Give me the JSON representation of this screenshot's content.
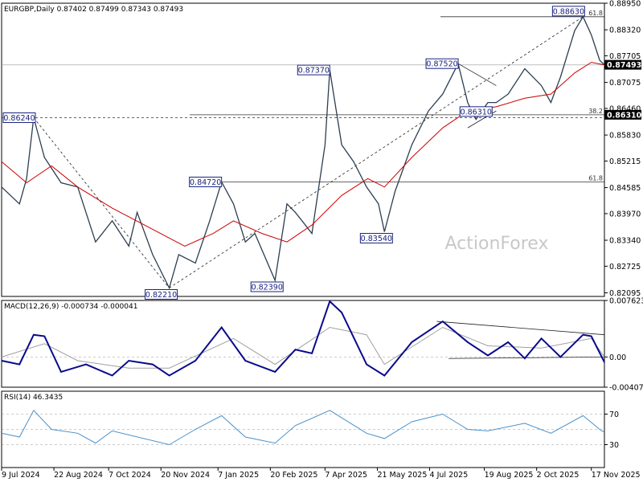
{
  "chart_data": [
    {
      "type": "line",
      "panel": "price",
      "title": "EURGBP,Daily",
      "ohlc": [
        "0.87402",
        "0.87499",
        "0.87343",
        "0.87493"
      ],
      "series": [
        {
          "name": "price",
          "color": "#2c3e50",
          "points": [
            [
              "2024-07-09",
              0.846
            ],
            [
              "2024-07-24",
              0.842
            ],
            [
              "2024-07-30",
              0.848
            ],
            [
              "2024-08-05",
              0.8624
            ],
            [
              "2024-08-14",
              0.853
            ],
            [
              "2024-08-28",
              0.847
            ],
            [
              "2024-09-11",
              0.846
            ],
            [
              "2024-09-26",
              0.833
            ],
            [
              "2024-10-10",
              0.838
            ],
            [
              "2024-10-24",
              0.832
            ],
            [
              "2024-10-31",
              0.84
            ],
            [
              "2024-11-13",
              0.83
            ],
            [
              "2024-11-27",
              0.8221
            ],
            [
              "2024-12-05",
              0.83
            ],
            [
              "2024-12-19",
              0.828
            ],
            [
              "2024-12-31",
              0.838
            ],
            [
              "2025-01-10",
              0.8472
            ],
            [
              "2025-01-20",
              0.842
            ],
            [
              "2025-01-30",
              0.833
            ],
            [
              "2025-02-07",
              0.835
            ],
            [
              "2025-02-24",
              0.8239
            ],
            [
              "2025-03-06",
              0.842
            ],
            [
              "2025-03-13",
              0.84
            ],
            [
              "2025-03-27",
              0.835
            ],
            [
              "2025-04-07",
              0.856
            ],
            [
              "2025-04-11",
              0.8737
            ],
            [
              "2025-04-21",
              0.856
            ],
            [
              "2025-05-01",
              0.852
            ],
            [
              "2025-05-12",
              0.846
            ],
            [
              "2025-05-22",
              0.842
            ],
            [
              "2025-05-27",
              0.8354
            ],
            [
              "2025-06-05",
              0.845
            ],
            [
              "2025-06-19",
              0.856
            ],
            [
              "2025-07-03",
              0.864
            ],
            [
              "2025-07-15",
              0.868
            ],
            [
              "2025-07-28",
              0.8752
            ],
            [
              "2025-08-05",
              0.866
            ],
            [
              "2025-08-12",
              0.862
            ],
            [
              "2025-08-22",
              0.866
            ],
            [
              "2025-08-29",
              0.866
            ],
            [
              "2025-09-08",
              0.868
            ],
            [
              "2025-09-22",
              0.874
            ],
            [
              "2025-10-06",
              0.87
            ],
            [
              "2025-10-14",
              0.866
            ],
            [
              "2025-10-22",
              0.872
            ],
            [
              "2025-11-03",
              0.883
            ],
            [
              "2025-11-10",
              0.8863
            ],
            [
              "2025-11-17",
              0.882
            ],
            [
              "2025-11-24",
              0.876
            ],
            [
              "2025-11-28",
              0.8749
            ]
          ]
        },
        {
          "name": "ma",
          "color": "#cc0000",
          "points": [
            [
              "2024-07-09",
              0.852
            ],
            [
              "2024-07-30",
              0.847
            ],
            [
              "2024-08-20",
              0.851
            ],
            [
              "2024-09-11",
              0.846
            ],
            [
              "2024-10-10",
              0.841
            ],
            [
              "2024-11-13",
              0.836
            ],
            [
              "2024-12-10",
              0.832
            ],
            [
              "2025-01-03",
              0.835
            ],
            [
              "2025-01-20",
              0.838
            ],
            [
              "2025-02-13",
              0.835
            ],
            [
              "2025-03-06",
              0.833
            ],
            [
              "2025-03-27",
              0.837
            ],
            [
              "2025-04-21",
              0.844
            ],
            [
              "2025-05-13",
              0.848
            ],
            [
              "2025-05-27",
              0.846
            ],
            [
              "2025-06-19",
              0.853
            ],
            [
              "2025-07-15",
              0.86
            ],
            [
              "2025-08-05",
              0.864
            ],
            [
              "2025-08-29",
              0.865
            ],
            [
              "2025-09-22",
              0.867
            ],
            [
              "2025-10-14",
              0.868
            ],
            [
              "2025-11-03",
              0.873
            ],
            [
              "2025-11-17",
              0.8755
            ],
            [
              "2025-11-28",
              0.8749
            ]
          ]
        }
      ],
      "ylim": [
        0.8201,
        0.8895
      ],
      "y_ticks": [
        "0.88950",
        "0.88320",
        "0.87705",
        "0.87075",
        "0.86460",
        "0.85830",
        "0.85215",
        "0.84585",
        "0.83970",
        "0.83340",
        "0.82725",
        "0.82095"
      ],
      "price_tag": "0.87493",
      "level_tag": "0.86310",
      "hlines": [
        {
          "value": 0.8863,
          "label": "61.8"
        },
        {
          "value": 0.8749
        },
        {
          "value": 0.8631,
          "label": "38.2"
        },
        {
          "value": 0.8624,
          "dashed": true
        },
        {
          "value": 0.8472,
          "label": "61.8"
        }
      ],
      "annotations": [
        {
          "text": "0.88630",
          "x": "2025-11-10",
          "y": 0.8863
        },
        {
          "text": "0.87520",
          "x": "2025-07-28",
          "y": 0.8752
        },
        {
          "text": "0.87370",
          "x": "2025-04-11",
          "y": 0.8737
        },
        {
          "text": "0.86240",
          "x": "2024-08-05",
          "y": 0.8624
        },
        {
          "text": "0.86310",
          "x": "2025-08-12",
          "y": 0.8631
        },
        {
          "text": "0.84720",
          "x": "2025-01-10",
          "y": 0.8472
        },
        {
          "text": "0.83540",
          "x": "2025-05-27",
          "y": 0.8354
        },
        {
          "text": "0.82390",
          "x": "2025-02-24",
          "y": 0.8239
        },
        {
          "text": "0.82210",
          "x": "2024-11-27",
          "y": 0.8221
        }
      ],
      "trendlines": [
        {
          "from": [
            "2024-11-27",
            0.8221
          ],
          "to": [
            "2025-11-10",
            0.8863
          ],
          "dashed": true
        },
        {
          "from": [
            "2024-08-05",
            0.8624
          ],
          "to": [
            "2024-11-27",
            0.8221
          ],
          "dashed": true
        },
        {
          "from": [
            "2025-07-28",
            0.8752
          ],
          "to": [
            "2025-08-29",
            0.87
          ]
        },
        {
          "from": [
            "2025-08-05",
            0.86
          ],
          "to": [
            "2025-08-29",
            0.864
          ]
        }
      ],
      "watermark": "ActionForex"
    },
    {
      "type": "line",
      "panel": "macd",
      "title": "MACD(12,26,9) -0.000734 -0.000041",
      "ylim": [
        -0.004073,
        0.007623
      ],
      "y_ticks": [
        "0.007623",
        "0.00",
        "-0.004073"
      ],
      "series": [
        {
          "name": "macd",
          "color": "#0a0a8c",
          "points": [
            [
              "2024-07-09",
              -0.0005
            ],
            [
              "2024-07-24",
              -0.001
            ],
            [
              "2024-08-05",
              0.003
            ],
            [
              "2024-08-14",
              0.0028
            ],
            [
              "2024-08-28",
              -0.002
            ],
            [
              "2024-09-18",
              -0.001
            ],
            [
              "2024-10-10",
              -0.0025
            ],
            [
              "2024-10-24",
              -0.0005
            ],
            [
              "2024-11-13",
              -0.001
            ],
            [
              "2024-11-27",
              -0.0025
            ],
            [
              "2024-12-19",
              -0.0005
            ],
            [
              "2025-01-10",
              0.004
            ],
            [
              "2025-01-30",
              -0.0005
            ],
            [
              "2025-02-24",
              -0.002
            ],
            [
              "2025-03-13",
              0.001
            ],
            [
              "2025-03-27",
              0.0005
            ],
            [
              "2025-04-11",
              0.0075
            ],
            [
              "2025-04-21",
              0.006
            ],
            [
              "2025-05-12",
              -0.001
            ],
            [
              "2025-05-27",
              -0.0025
            ],
            [
              "2025-06-19",
              0.002
            ],
            [
              "2025-07-15",
              0.0048
            ],
            [
              "2025-08-05",
              0.002
            ],
            [
              "2025-08-22",
              0.0002
            ],
            [
              "2025-09-08",
              0.002
            ],
            [
              "2025-09-22",
              -0.0002
            ],
            [
              "2025-10-06",
              0.0025
            ],
            [
              "2025-10-22",
              0.0
            ],
            [
              "2025-11-10",
              0.003
            ],
            [
              "2025-11-17",
              0.0028
            ],
            [
              "2025-11-28",
              -0.0007
            ]
          ]
        },
        {
          "name": "signal",
          "color": "#a0a0a0",
          "points": [
            [
              "2024-07-09",
              0.0
            ],
            [
              "2024-08-14",
              0.0018
            ],
            [
              "2024-09-11",
              -0.0005
            ],
            [
              "2024-10-24",
              -0.0015
            ],
            [
              "2024-11-27",
              -0.0015
            ],
            [
              "2025-01-20",
              0.0025
            ],
            [
              "2025-02-24",
              -0.001
            ],
            [
              "2025-04-11",
              0.004
            ],
            [
              "2025-05-12",
              0.003
            ],
            [
              "2025-05-27",
              -0.001
            ],
            [
              "2025-07-15",
              0.004
            ],
            [
              "2025-08-22",
              0.0015
            ],
            [
              "2025-10-06",
              0.0012
            ],
            [
              "2025-11-17",
              0.0025
            ],
            [
              "2025-11-28",
              0.0
            ]
          ]
        }
      ],
      "trendlines": [
        {
          "from": [
            "2025-07-10",
            0.0048
          ],
          "to": [
            "2025-11-28",
            0.003
          ]
        },
        {
          "from": [
            "2025-07-20",
            -0.0002
          ],
          "to": [
            "2025-11-28",
            0.0
          ]
        }
      ]
    },
    {
      "type": "line",
      "panel": "rsi",
      "title": "RSI(14) 46.3435",
      "ylim": [
        0,
        100
      ],
      "y_ticks": [
        "70",
        "30"
      ],
      "levels": [
        70,
        50,
        30
      ],
      "series": [
        {
          "name": "rsi",
          "color": "#4a90c8",
          "points": [
            [
              "2024-07-09",
              45
            ],
            [
              "2024-07-24",
              40
            ],
            [
              "2024-08-05",
              75
            ],
            [
              "2024-08-20",
              50
            ],
            [
              "2024-09-11",
              45
            ],
            [
              "2024-09-26",
              32
            ],
            [
              "2024-10-10",
              48
            ],
            [
              "2024-11-27",
              30
            ],
            [
              "2024-12-19",
              50
            ],
            [
              "2025-01-10",
              68
            ],
            [
              "2025-01-30",
              40
            ],
            [
              "2025-02-24",
              32
            ],
            [
              "2025-03-13",
              55
            ],
            [
              "2025-04-11",
              75
            ],
            [
              "2025-05-12",
              45
            ],
            [
              "2025-05-27",
              38
            ],
            [
              "2025-06-19",
              60
            ],
            [
              "2025-07-15",
              70
            ],
            [
              "2025-08-05",
              50
            ],
            [
              "2025-08-22",
              48
            ],
            [
              "2025-09-22",
              58
            ],
            [
              "2025-10-14",
              45
            ],
            [
              "2025-11-10",
              68
            ],
            [
              "2025-11-24",
              50
            ],
            [
              "2025-11-28",
              46
            ]
          ]
        }
      ]
    }
  ],
  "x_axis": {
    "range": [
      "2024-07-09",
      "2025-11-28"
    ],
    "ticks": [
      {
        "date": "2024-07-09",
        "label": "9 Jul 2024"
      },
      {
        "date": "2024-08-22",
        "label": "22 Aug 2024"
      },
      {
        "date": "2024-10-07",
        "label": "7 Oct 2024"
      },
      {
        "date": "2024-11-20",
        "label": "20 Nov 2024"
      },
      {
        "date": "2025-01-07",
        "label": "7 Jan 2025"
      },
      {
        "date": "2025-02-20",
        "label": "20 Feb 2025"
      },
      {
        "date": "2025-04-07",
        "label": "7 Apr 2025"
      },
      {
        "date": "2025-05-21",
        "label": "21 May 2025"
      },
      {
        "date": "2025-07-04",
        "label": "4 Jul 2025"
      },
      {
        "date": "2025-08-19",
        "label": "19 Aug 2025"
      },
      {
        "date": "2025-10-02",
        "label": "2 Oct 2025"
      },
      {
        "date": "2025-11-17",
        "label": "17 Nov 2025"
      }
    ]
  }
}
